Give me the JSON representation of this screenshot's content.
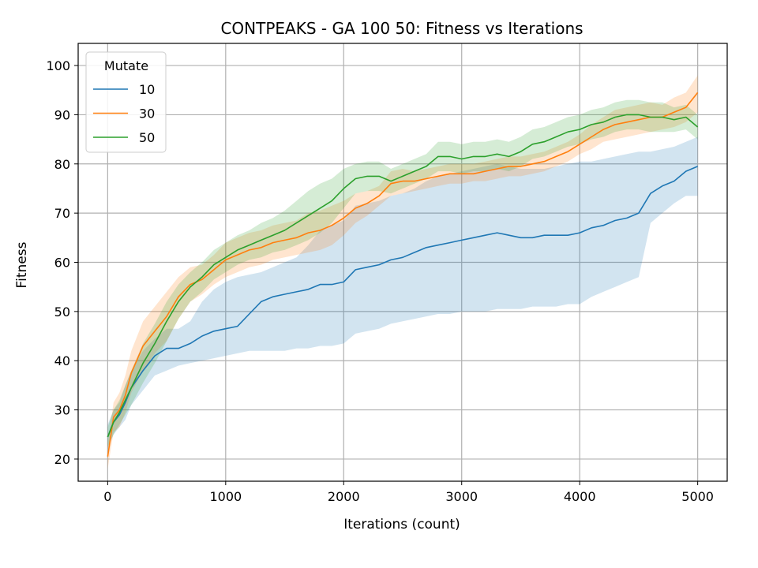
{
  "chart_data": {
    "type": "line",
    "title": "CONTPEAKS - GA 100 50: Fitness vs Iterations",
    "xlabel": "Iterations (count)",
    "ylabel": "Fitness",
    "xlim": [
      -250,
      5250
    ],
    "ylim": [
      15.5,
      104.5
    ],
    "xticks": [
      0,
      1000,
      2000,
      3000,
      4000,
      5000
    ],
    "yticks": [
      20,
      30,
      40,
      50,
      60,
      70,
      80,
      90,
      100
    ],
    "grid": true,
    "legend": {
      "title": "Mutate",
      "position": "top-left"
    },
    "x": [
      0,
      50,
      100,
      150,
      200,
      300,
      400,
      500,
      600,
      700,
      800,
      900,
      1000,
      1100,
      1200,
      1300,
      1400,
      1500,
      1600,
      1700,
      1800,
      1900,
      2000,
      2100,
      2200,
      2300,
      2400,
      2500,
      2600,
      2700,
      2800,
      2900,
      3000,
      3100,
      3200,
      3300,
      3400,
      3500,
      3600,
      3700,
      3800,
      3900,
      4000,
      4100,
      4200,
      4300,
      4400,
      4500,
      4600,
      4700,
      4800,
      4900,
      5000
    ],
    "series": [
      {
        "name": "10",
        "color": "#1f77b4",
        "values": [
          24.5,
          27.5,
          29.0,
          31.5,
          34.5,
          38.0,
          41.0,
          42.5,
          42.5,
          43.5,
          45.0,
          46.0,
          46.5,
          47.0,
          49.5,
          52.0,
          53.0,
          53.5,
          54.0,
          54.5,
          55.5,
          55.5,
          56.0,
          58.5,
          59.0,
          59.5,
          60.5,
          61.0,
          62.0,
          63.0,
          63.5,
          64.0,
          64.5,
          65.0,
          65.5,
          66.0,
          65.5,
          65.0,
          65.0,
          65.5,
          65.5,
          65.5,
          66.0,
          67.0,
          67.5,
          68.5,
          69.0,
          70.0,
          74.0,
          75.5,
          76.5,
          78.5,
          79.5
        ],
        "lower": [
          22.0,
          25.0,
          26.5,
          28.0,
          31.0,
          34.0,
          37.0,
          38.0,
          39.0,
          39.5,
          40.0,
          40.5,
          41.0,
          41.5,
          42.0,
          42.0,
          42.0,
          42.0,
          42.5,
          42.5,
          43.0,
          43.0,
          43.5,
          45.5,
          46.0,
          46.5,
          47.5,
          48.0,
          48.5,
          49.0,
          49.5,
          49.5,
          50.0,
          50.0,
          50.0,
          50.5,
          50.5,
          50.5,
          51.0,
          51.0,
          51.0,
          51.5,
          51.5,
          53.0,
          54.0,
          55.0,
          56.0,
          57.0,
          68.0,
          70.0,
          72.0,
          73.5,
          73.5
        ],
        "upper": [
          27.0,
          30.0,
          31.5,
          35.0,
          38.0,
          42.0,
          44.5,
          46.5,
          46.5,
          48.0,
          52.0,
          54.5,
          56.0,
          57.0,
          57.5,
          58.0,
          59.0,
          60.0,
          61.0,
          63.5,
          66.5,
          67.5,
          68.5,
          71.5,
          72.0,
          72.5,
          73.5,
          74.0,
          75.0,
          76.5,
          77.5,
          78.0,
          78.5,
          79.0,
          79.5,
          80.0,
          79.5,
          79.0,
          79.0,
          79.0,
          79.5,
          80.0,
          80.5,
          80.5,
          81.0,
          81.5,
          82.0,
          82.5,
          82.5,
          83.0,
          83.5,
          84.5,
          85.5
        ]
      },
      {
        "name": "30",
        "color": "#ff7f0e",
        "values": [
          20.5,
          28.5,
          30.0,
          33.0,
          37.5,
          43.0,
          46.0,
          49.0,
          53.0,
          55.5,
          56.5,
          58.5,
          60.5,
          61.5,
          62.5,
          63.0,
          64.0,
          64.5,
          65.0,
          66.0,
          66.5,
          67.5,
          69.0,
          71.0,
          72.0,
          73.5,
          76.0,
          76.5,
          76.5,
          77.0,
          77.5,
          78.0,
          78.0,
          78.0,
          78.5,
          79.0,
          79.5,
          79.5,
          80.0,
          80.5,
          81.5,
          82.5,
          84.0,
          85.5,
          87.0,
          88.0,
          88.5,
          89.0,
          89.5,
          89.5,
          90.5,
          91.5,
          94.5
        ],
        "lower": [
          18.0,
          25.5,
          26.5,
          29.5,
          33.5,
          38.0,
          41.5,
          44.0,
          48.5,
          52.0,
          53.5,
          55.5,
          57.0,
          58.0,
          59.0,
          59.5,
          60.5,
          61.0,
          61.5,
          62.0,
          62.5,
          63.5,
          65.5,
          68.0,
          69.5,
          71.5,
          73.5,
          74.0,
          74.5,
          75.0,
          75.5,
          76.0,
          76.0,
          76.5,
          76.5,
          77.0,
          77.5,
          77.5,
          78.0,
          78.5,
          79.5,
          80.5,
          82.0,
          83.0,
          84.5,
          85.0,
          85.5,
          86.0,
          86.5,
          87.0,
          87.5,
          88.5,
          90.5
        ],
        "upper": [
          23.0,
          31.5,
          33.5,
          37.0,
          42.0,
          48.0,
          51.0,
          54.0,
          57.0,
          59.0,
          59.5,
          61.5,
          64.0,
          65.0,
          66.0,
          66.5,
          67.5,
          68.0,
          68.5,
          70.0,
          70.5,
          71.5,
          72.5,
          74.0,
          74.5,
          75.5,
          78.5,
          79.0,
          78.5,
          79.0,
          79.5,
          80.0,
          80.0,
          80.0,
          80.5,
          81.0,
          81.5,
          81.5,
          82.0,
          82.5,
          83.5,
          84.5,
          86.0,
          88.0,
          89.5,
          91.0,
          91.5,
          92.0,
          92.5,
          92.0,
          93.5,
          94.5,
          98.0
        ]
      },
      {
        "name": "50",
        "color": "#2ca02c",
        "values": [
          24.5,
          27.5,
          29.5,
          32.0,
          34.5,
          39.5,
          43.5,
          48.0,
          52.0,
          55.0,
          57.0,
          59.5,
          61.0,
          62.5,
          63.5,
          64.5,
          65.5,
          66.5,
          68.0,
          69.5,
          71.0,
          72.5,
          75.0,
          77.0,
          77.5,
          77.5,
          76.5,
          77.5,
          78.5,
          79.5,
          81.5,
          81.5,
          81.0,
          81.5,
          81.5,
          82.0,
          81.5,
          82.5,
          84.0,
          84.5,
          85.5,
          86.5,
          87.0,
          88.0,
          88.5,
          89.5,
          90.0,
          90.0,
          89.5,
          89.5,
          89.0,
          89.5,
          87.5
        ],
        "lower": [
          22.5,
          25.0,
          27.0,
          29.0,
          31.0,
          35.5,
          39.5,
          44.0,
          48.5,
          52.0,
          54.0,
          56.5,
          58.0,
          59.5,
          60.5,
          61.0,
          62.0,
          62.5,
          63.5,
          64.5,
          66.0,
          68.0,
          71.0,
          74.0,
          74.5,
          74.5,
          74.0,
          75.0,
          76.0,
          77.0,
          78.5,
          78.5,
          78.0,
          78.5,
          78.5,
          79.0,
          78.5,
          79.5,
          81.0,
          81.5,
          82.5,
          83.5,
          84.0,
          85.0,
          85.5,
          86.5,
          87.0,
          87.0,
          86.5,
          86.5,
          86.5,
          87.0,
          85.0
        ],
        "upper": [
          26.5,
          30.0,
          32.0,
          35.0,
          38.0,
          43.5,
          47.5,
          52.0,
          55.5,
          58.0,
          60.0,
          62.5,
          64.0,
          65.5,
          66.5,
          68.0,
          69.0,
          70.5,
          72.5,
          74.5,
          76.0,
          77.0,
          79.0,
          80.0,
          80.5,
          80.5,
          79.0,
          80.0,
          81.0,
          82.0,
          84.5,
          84.5,
          84.0,
          84.5,
          84.5,
          85.0,
          84.5,
          85.5,
          87.0,
          87.5,
          88.5,
          89.5,
          90.0,
          91.0,
          91.5,
          92.5,
          93.0,
          93.0,
          92.5,
          92.5,
          91.5,
          92.0,
          90.0
        ]
      }
    ]
  }
}
